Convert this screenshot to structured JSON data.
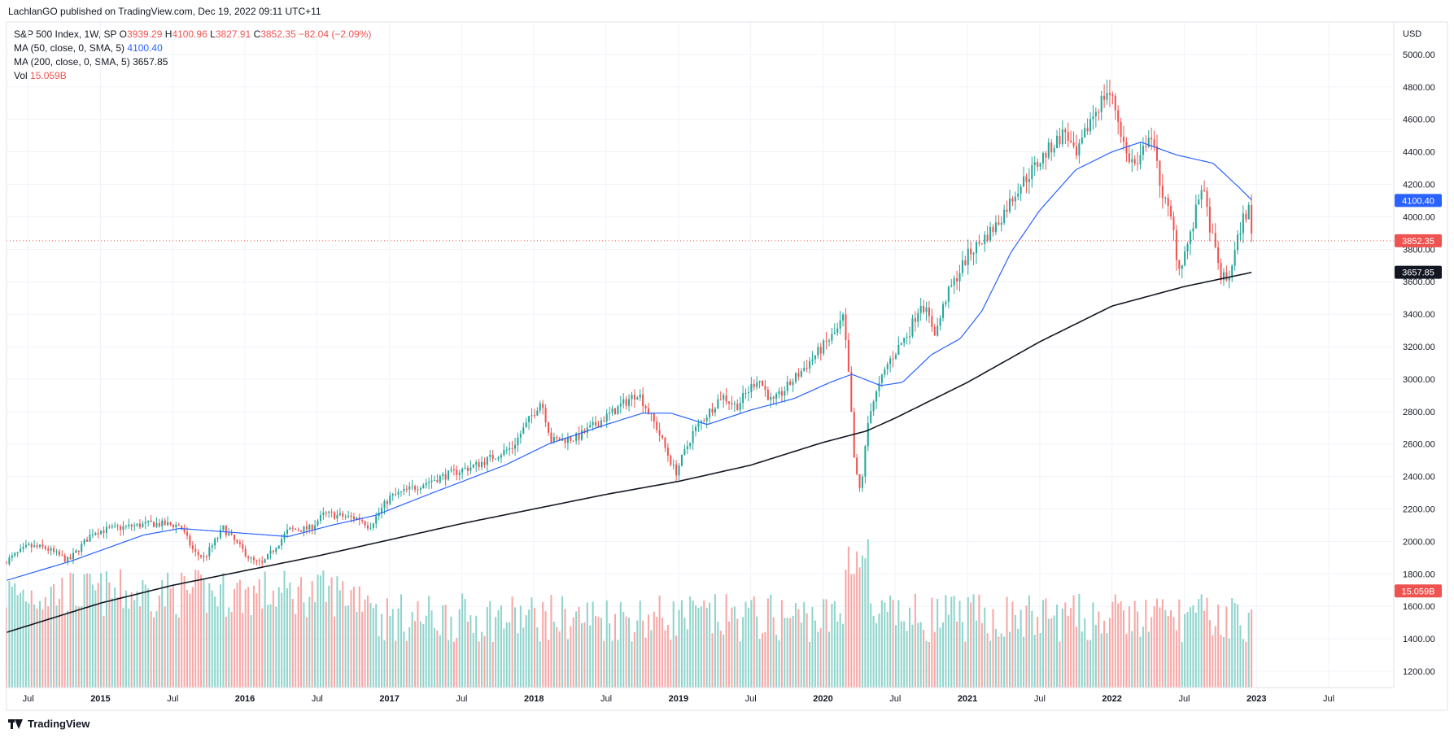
{
  "header": {
    "text": "LachlanGO published on TradingView.com, Dec 19, 2022 09:11 UTC+11"
  },
  "legend": {
    "symbol": "S&P 500 Index, 1W, SP",
    "o_label": "O",
    "o_val": "3939.29",
    "h_label": "H",
    "h_val": "4100.96",
    "l_label": "L",
    "l_val": "3827.91",
    "c_label": "C",
    "c_val": "3852.35",
    "change": "−82.04 (−2.09%)",
    "ma50_label": "MA (50, close, 0, SMA, 5)",
    "ma50_val": "4100.40",
    "ma200_label": "MA (200, close, 0, SMA, 5)",
    "ma200_val": "3657.85",
    "vol_label": "Vol",
    "vol_val": "15.059B"
  },
  "footer": {
    "brand": "TradingView"
  },
  "colors": {
    "up": "#26a69a",
    "down": "#ef5350",
    "vol_up": "#8fd4cc",
    "vol_down": "#f7a8a6",
    "ma50": "#2962ff",
    "ma200": "#131722",
    "grid": "#f0f3fa",
    "axis_text": "#131722"
  },
  "chart_data": {
    "type": "candlestick",
    "title": "S&P 500 Index, 1W, SP",
    "currency": "USD",
    "y_ticks": [
      1200,
      1400,
      1600,
      1800,
      2000,
      2200,
      2400,
      2600,
      2800,
      3000,
      3200,
      3400,
      3600,
      3800,
      4000,
      4200,
      4400,
      4600,
      4800,
      5000
    ],
    "y_tick_labels": [
      "1200.00",
      "1400.00",
      "1600.00",
      "1800.00",
      "2000.00",
      "2200.00",
      "2400.00",
      "2600.00",
      "2800.00",
      "3000.00",
      "3200.00",
      "3400.00",
      "3600.00",
      "3800.00",
      "4000.00",
      "4200.00",
      "4400.00",
      "4600.00",
      "4800.00",
      "5000.00"
    ],
    "ylim": [
      1100,
      5200
    ],
    "x_ticks": [
      {
        "label": "Jul",
        "t": 2014.5
      },
      {
        "label": "2015",
        "t": 2015.0
      },
      {
        "label": "Jul",
        "t": 2015.5
      },
      {
        "label": "2016",
        "t": 2016.0
      },
      {
        "label": "Jul",
        "t": 2016.5
      },
      {
        "label": "2017",
        "t": 2017.0
      },
      {
        "label": "Jul",
        "t": 2017.5
      },
      {
        "label": "2018",
        "t": 2018.0
      },
      {
        "label": "Jul",
        "t": 2018.5
      },
      {
        "label": "2019",
        "t": 2019.0
      },
      {
        "label": "Jul",
        "t": 2019.5
      },
      {
        "label": "2020",
        "t": 2020.0
      },
      {
        "label": "Jul",
        "t": 2020.5
      },
      {
        "label": "2021",
        "t": 2021.0
      },
      {
        "label": "Jul",
        "t": 2021.5
      },
      {
        "label": "2022",
        "t": 2022.0
      },
      {
        "label": "Jul",
        "t": 2022.5
      },
      {
        "label": "2023",
        "t": 2023.0
      },
      {
        "label": "Jul",
        "t": 2023.5
      }
    ],
    "xlim": [
      2014.35,
      2023.95
    ],
    "price_key_points": [
      [
        2014.35,
        1880
      ],
      [
        2014.5,
        1970
      ],
      [
        2014.62,
        1960
      ],
      [
        2014.78,
        1880
      ],
      [
        2014.95,
        2060
      ],
      [
        2015.1,
        2080
      ],
      [
        2015.35,
        2110
      ],
      [
        2015.55,
        2100
      ],
      [
        2015.65,
        1930
      ],
      [
        2015.72,
        1900
      ],
      [
        2015.85,
        2080
      ],
      [
        2016.05,
        1880
      ],
      [
        2016.12,
        1860
      ],
      [
        2016.3,
        2070
      ],
      [
        2016.45,
        2080
      ],
      [
        2016.55,
        2170
      ],
      [
        2016.8,
        2140
      ],
      [
        2016.86,
        2090
      ],
      [
        2017.0,
        2270
      ],
      [
        2017.3,
        2380
      ],
      [
        2017.6,
        2470
      ],
      [
        2017.85,
        2580
      ],
      [
        2018.05,
        2870
      ],
      [
        2018.12,
        2620
      ],
      [
        2018.3,
        2640
      ],
      [
        2018.55,
        2800
      ],
      [
        2018.72,
        2920
      ],
      [
        2018.85,
        2700
      ],
      [
        2018.98,
        2420
      ],
      [
        2019.1,
        2670
      ],
      [
        2019.3,
        2900
      ],
      [
        2019.4,
        2830
      ],
      [
        2019.55,
        3010
      ],
      [
        2019.65,
        2850
      ],
      [
        2019.8,
        3000
      ],
      [
        2020.1,
        3300
      ],
      [
        2020.14,
        3380
      ],
      [
        2020.18,
        3000
      ],
      [
        2020.22,
        2450
      ],
      [
        2020.26,
        2300
      ],
      [
        2020.32,
        2800
      ],
      [
        2020.45,
        3100
      ],
      [
        2020.6,
        3300
      ],
      [
        2020.68,
        3480
      ],
      [
        2020.78,
        3280
      ],
      [
        2020.85,
        3500
      ],
      [
        2021.0,
        3760
      ],
      [
        2021.2,
        3950
      ],
      [
        2021.35,
        4180
      ],
      [
        2021.55,
        4400
      ],
      [
        2021.68,
        4530
      ],
      [
        2021.75,
        4350
      ],
      [
        2021.85,
        4600
      ],
      [
        2021.97,
        4780
      ],
      [
        2022.02,
        4680
      ],
      [
        2022.1,
        4380
      ],
      [
        2022.18,
        4300
      ],
      [
        2022.26,
        4540
      ],
      [
        2022.35,
        4140
      ],
      [
        2022.42,
        3950
      ],
      [
        2022.46,
        3670
      ],
      [
        2022.55,
        3900
      ],
      [
        2022.62,
        4200
      ],
      [
        2022.68,
        3930
      ],
      [
        2022.75,
        3640
      ],
      [
        2022.8,
        3600
      ],
      [
        2022.85,
        3780
      ],
      [
        2022.9,
        3980
      ],
      [
        2022.95,
        4050
      ],
      [
        2022.97,
        3852
      ]
    ],
    "ma50_key_points": [
      [
        2014.35,
        1760
      ],
      [
        2014.8,
        1880
      ],
      [
        2015.3,
        2040
      ],
      [
        2015.55,
        2080
      ],
      [
        2015.85,
        2060
      ],
      [
        2016.3,
        2030
      ],
      [
        2016.6,
        2100
      ],
      [
        2016.9,
        2160
      ],
      [
        2017.3,
        2300
      ],
      [
        2017.8,
        2470
      ],
      [
        2018.1,
        2600
      ],
      [
        2018.5,
        2720
      ],
      [
        2018.75,
        2790
      ],
      [
        2018.95,
        2790
      ],
      [
        2019.2,
        2720
      ],
      [
        2019.5,
        2810
      ],
      [
        2019.8,
        2880
      ],
      [
        2020.05,
        2980
      ],
      [
        2020.2,
        3030
      ],
      [
        2020.4,
        2960
      ],
      [
        2020.55,
        2980
      ],
      [
        2020.75,
        3150
      ],
      [
        2020.95,
        3250
      ],
      [
        2021.1,
        3420
      ],
      [
        2021.3,
        3780
      ],
      [
        2021.5,
        4040
      ],
      [
        2021.75,
        4290
      ],
      [
        2022.0,
        4400
      ],
      [
        2022.2,
        4460
      ],
      [
        2022.45,
        4380
      ],
      [
        2022.7,
        4330
      ],
      [
        2022.88,
        4180
      ],
      [
        2022.97,
        4100
      ]
    ],
    "ma200_key_points": [
      [
        2014.35,
        1440
      ],
      [
        2015.0,
        1620
      ],
      [
        2015.5,
        1730
      ],
      [
        2016.0,
        1820
      ],
      [
        2016.5,
        1910
      ],
      [
        2017.0,
        2010
      ],
      [
        2017.5,
        2110
      ],
      [
        2018.0,
        2200
      ],
      [
        2018.5,
        2290
      ],
      [
        2019.0,
        2370
      ],
      [
        2019.5,
        2470
      ],
      [
        2020.0,
        2610
      ],
      [
        2020.3,
        2680
      ],
      [
        2020.5,
        2760
      ],
      [
        2021.0,
        2980
      ],
      [
        2021.5,
        3230
      ],
      [
        2022.0,
        3450
      ],
      [
        2022.5,
        3570
      ],
      [
        2022.97,
        3658
      ]
    ],
    "current_price": {
      "value": 3852.35,
      "label": "3852.35"
    },
    "ma50_last": {
      "value": 4100.4,
      "label": "4100.40"
    },
    "ma200_last": {
      "value": 3657.85,
      "label": "3657.85"
    },
    "volume_last": {
      "label": "15.059B"
    },
    "volume_scale": {
      "min": 1100,
      "max": 2100,
      "note": "volume pane shares price axis region"
    }
  }
}
